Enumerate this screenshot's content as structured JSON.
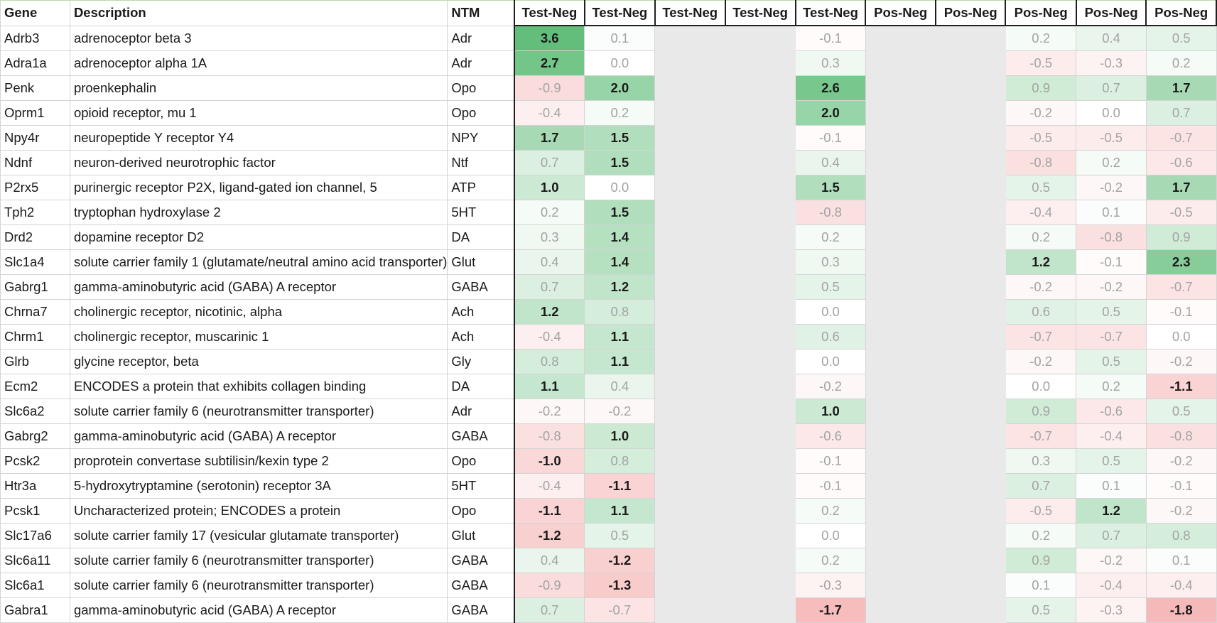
{
  "chart_data": {
    "type": "heatmap",
    "color_scale": {
      "negative": "#f08a8a",
      "neutral": "#ffffff",
      "positive": "#63be7b"
    },
    "headers": {
      "gene": "Gene",
      "description": "Description",
      "ntm": "NTM",
      "columns": [
        "Test-Neg",
        "Test-Neg",
        "Test-Neg",
        "Test-Neg",
        "Test-Neg",
        "Pos-Neg",
        "Pos-Neg",
        "Pos-Neg",
        "Pos-Neg",
        "Pos-Neg"
      ]
    },
    "rows": [
      {
        "gene": "Adrb3",
        "description": "adrenoceptor beta 3",
        "ntm": "Adr",
        "values": [
          3.6,
          0.1,
          null,
          null,
          -0.1,
          null,
          null,
          0.2,
          0.4,
          0.5
        ]
      },
      {
        "gene": "Adra1a",
        "description": "adrenoceptor alpha 1A",
        "ntm": "Adr",
        "values": [
          2.7,
          0.0,
          null,
          null,
          0.3,
          null,
          null,
          -0.5,
          -0.3,
          0.2
        ]
      },
      {
        "gene": "Penk",
        "description": "proenkephalin",
        "ntm": "Opo",
        "values": [
          -0.9,
          2.0,
          null,
          null,
          2.6,
          null,
          null,
          0.9,
          0.7,
          1.7
        ]
      },
      {
        "gene": "Oprm1",
        "description": "opioid receptor, mu 1",
        "ntm": "Opo",
        "values": [
          -0.4,
          0.2,
          null,
          null,
          2.0,
          null,
          null,
          -0.2,
          0.0,
          0.7
        ]
      },
      {
        "gene": "Npy4r",
        "description": "neuropeptide Y receptor Y4",
        "ntm": "NPY",
        "values": [
          1.7,
          1.5,
          null,
          null,
          -0.1,
          null,
          null,
          -0.5,
          -0.5,
          -0.7
        ]
      },
      {
        "gene": "Ndnf",
        "description": "neuron-derived neurotrophic factor",
        "ntm": "Ntf",
        "values": [
          0.7,
          1.5,
          null,
          null,
          0.4,
          null,
          null,
          -0.8,
          0.2,
          -0.6
        ]
      },
      {
        "gene": "P2rx5",
        "description": "purinergic receptor P2X, ligand-gated ion channel, 5",
        "ntm": "ATP",
        "values": [
          1.0,
          0.0,
          null,
          null,
          1.5,
          null,
          null,
          0.5,
          -0.2,
          1.7
        ]
      },
      {
        "gene": "Tph2",
        "description": "tryptophan hydroxylase 2",
        "ntm": "5HT",
        "values": [
          0.2,
          1.5,
          null,
          null,
          -0.8,
          null,
          null,
          -0.4,
          0.1,
          -0.5
        ]
      },
      {
        "gene": "Drd2",
        "description": "dopamine receptor D2",
        "ntm": "DA",
        "values": [
          0.3,
          1.4,
          null,
          null,
          0.2,
          null,
          null,
          0.2,
          -0.8,
          0.9
        ]
      },
      {
        "gene": "Slc1a4",
        "description": "solute carrier family 1 (glutamate/neutral amino acid transporter)",
        "ntm": "Glut",
        "values": [
          0.4,
          1.4,
          null,
          null,
          0.3,
          null,
          null,
          1.2,
          -0.1,
          2.3
        ]
      },
      {
        "gene": "Gabrg1",
        "description": "gamma-aminobutyric acid (GABA) A receptor",
        "ntm": "GABA",
        "values": [
          0.7,
          1.2,
          null,
          null,
          0.5,
          null,
          null,
          -0.2,
          -0.2,
          -0.7
        ]
      },
      {
        "gene": "Chrna7",
        "description": "cholinergic receptor, nicotinic, alpha",
        "ntm": "Ach",
        "values": [
          1.2,
          0.8,
          null,
          null,
          0.0,
          null,
          null,
          0.6,
          0.5,
          -0.1
        ]
      },
      {
        "gene": "Chrm1",
        "description": "cholinergic receptor, muscarinic 1",
        "ntm": "Ach",
        "values": [
          -0.4,
          1.1,
          null,
          null,
          0.6,
          null,
          null,
          -0.7,
          -0.7,
          0.0
        ]
      },
      {
        "gene": "Glrb",
        "description": "glycine receptor, beta",
        "ntm": "Gly",
        "values": [
          0.8,
          1.1,
          null,
          null,
          0.0,
          null,
          null,
          -0.2,
          0.5,
          -0.2
        ]
      },
      {
        "gene": "Ecm2",
        "description": "ENCODES a protein that exhibits collagen binding",
        "ntm": "DA",
        "values": [
          1.1,
          0.4,
          null,
          null,
          -0.2,
          null,
          null,
          0.0,
          0.2,
          -1.1
        ]
      },
      {
        "gene": "Slc6a2",
        "description": "solute carrier family 6 (neurotransmitter transporter)",
        "ntm": "Adr",
        "values": [
          -0.2,
          -0.2,
          null,
          null,
          1.0,
          null,
          null,
          0.9,
          -0.6,
          0.5
        ]
      },
      {
        "gene": "Gabrg2",
        "description": "gamma-aminobutyric acid (GABA) A receptor",
        "ntm": "GABA",
        "values": [
          -0.8,
          1.0,
          null,
          null,
          -0.6,
          null,
          null,
          -0.7,
          -0.4,
          -0.8
        ]
      },
      {
        "gene": "Pcsk2",
        "description": "proprotein convertase subtilisin/kexin type 2",
        "ntm": "Opo",
        "values": [
          -1.0,
          0.8,
          null,
          null,
          -0.1,
          null,
          null,
          0.3,
          0.5,
          -0.2
        ]
      },
      {
        "gene": "Htr3a",
        "description": "5-hydroxytryptamine (serotonin) receptor 3A",
        "ntm": "5HT",
        "values": [
          -0.4,
          -1.1,
          null,
          null,
          -0.1,
          null,
          null,
          0.7,
          0.1,
          -0.1
        ]
      },
      {
        "gene": "Pcsk1",
        "description": "Uncharacterized protein; ENCODES a protein",
        "ntm": "Opo",
        "values": [
          -1.1,
          1.1,
          null,
          null,
          0.2,
          null,
          null,
          -0.5,
          1.2,
          -0.2
        ]
      },
      {
        "gene": "Slc17a6",
        "description": "solute carrier family 17 (vesicular glutamate transporter)",
        "ntm": "Glut",
        "values": [
          -1.2,
          0.5,
          null,
          null,
          0.0,
          null,
          null,
          0.2,
          0.7,
          0.8
        ]
      },
      {
        "gene": "Slc6a11",
        "description": "solute carrier family 6 (neurotransmitter transporter)",
        "ntm": "GABA",
        "values": [
          0.4,
          -1.2,
          null,
          null,
          0.2,
          null,
          null,
          0.9,
          -0.2,
          0.1
        ]
      },
      {
        "gene": "Slc6a1",
        "description": "solute carrier family 6 (neurotransmitter transporter)",
        "ntm": "GABA",
        "values": [
          -0.9,
          -1.3,
          null,
          null,
          -0.3,
          null,
          null,
          0.1,
          -0.4,
          -0.4
        ]
      },
      {
        "gene": "Gabra1",
        "description": "gamma-aminobutyric acid (GABA) A receptor",
        "ntm": "GABA",
        "values": [
          0.7,
          -0.7,
          null,
          null,
          -1.7,
          null,
          null,
          0.5,
          -0.3,
          -1.8
        ]
      }
    ]
  }
}
